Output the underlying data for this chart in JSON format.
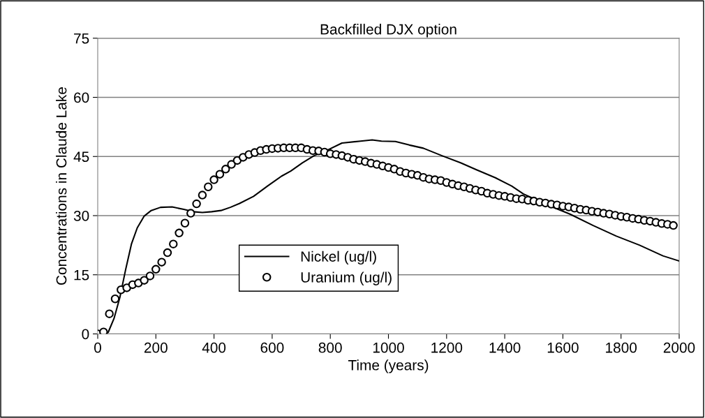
{
  "chart_data": {
    "type": "line",
    "title": "Backfilled DJX option",
    "xlabel": "Time (years)",
    "ylabel": "Concentrations in Claude Lake",
    "xlim": [
      0,
      2000
    ],
    "xticks": [
      0,
      200,
      400,
      600,
      800,
      1000,
      1200,
      1400,
      1600,
      1800,
      2000
    ],
    "ylim": [
      0,
      75
    ],
    "yticks": [
      0,
      15,
      30,
      45,
      60,
      75
    ],
    "grid": "y",
    "legend": "bottom",
    "series": [
      {
        "name": "Nickel (ug/l)",
        "color": "#000000",
        "marker": "none",
        "line_style": "solid",
        "x": [
          0,
          20,
          36,
          56,
          76,
          96,
          116,
          136,
          160,
          184,
          216,
          256,
          296,
          328,
          360,
          392,
          424,
          456,
          488,
          536,
          584,
          632,
          664,
          704,
          744,
          784,
          840,
          904,
          944,
          976,
          1024,
          1072,
          1120,
          1184,
          1248,
          1304,
          1368,
          1424,
          1464,
          1544,
          1624,
          1704,
          1784,
          1864,
          1944,
          2000
        ],
        "values": [
          0,
          0,
          0.4,
          3.9,
          9.2,
          16.3,
          22.8,
          26.9,
          29.9,
          31.3,
          32.1,
          32.2,
          31.6,
          31.0,
          30.8,
          31.0,
          31.3,
          32.1,
          33.1,
          34.9,
          37.5,
          40.0,
          41.3,
          43.4,
          45.2,
          46.4,
          48.4,
          48.9,
          49.2,
          48.9,
          48.8,
          47.9,
          47.1,
          45.2,
          43.4,
          41.6,
          39.6,
          37.5,
          35.5,
          32.8,
          30.4,
          27.5,
          24.8,
          22.5,
          19.8,
          18.5
        ]
      },
      {
        "name": "Uranium (ug/l)",
        "type": "scatter",
        "color": "#000000",
        "marker": "circle",
        "x": [
          0,
          20,
          40,
          60,
          80,
          100,
          120,
          140,
          160,
          180,
          200,
          220,
          240,
          260,
          280,
          300,
          320,
          340,
          360,
          380,
          400,
          420,
          440,
          460,
          480,
          500,
          520,
          540,
          560,
          580,
          600,
          620,
          640,
          660,
          680,
          700,
          720,
          740,
          760,
          780,
          800,
          820,
          840,
          860,
          880,
          900,
          920,
          940,
          960,
          980,
          1000,
          1020,
          1040,
          1060,
          1080,
          1100,
          1120,
          1140,
          1160,
          1180,
          1200,
          1220,
          1240,
          1260,
          1280,
          1300,
          1320,
          1340,
          1360,
          1380,
          1400,
          1420,
          1440,
          1460,
          1480,
          1500,
          1520,
          1540,
          1560,
          1580,
          1600,
          1620,
          1640,
          1660,
          1680,
          1700,
          1720,
          1740,
          1760,
          1780,
          1800,
          1820,
          1840,
          1860,
          1880,
          1900,
          1920,
          1940,
          1960,
          1980
        ],
        "values": [
          0,
          0.5,
          5.1,
          8.9,
          11.2,
          11.7,
          12.5,
          12.9,
          13.6,
          14.7,
          16.4,
          18.2,
          20.6,
          22.8,
          25.6,
          28.1,
          30.6,
          33.0,
          35.2,
          37.3,
          39.1,
          40.5,
          41.8,
          43.0,
          44.0,
          44.8,
          45.5,
          46.0,
          46.5,
          46.8,
          47.0,
          47.1,
          47.2,
          47.2,
          47.2,
          47.2,
          46.8,
          46.5,
          46.4,
          46.1,
          45.7,
          45.5,
          45.2,
          44.8,
          44.3,
          44.0,
          43.7,
          43.3,
          43.0,
          42.6,
          42.2,
          41.8,
          41.2,
          40.8,
          40.5,
          40.2,
          39.7,
          39.3,
          39.1,
          38.9,
          38.4,
          38.0,
          37.6,
          37.3,
          36.9,
          36.5,
          36.2,
          35.7,
          35.4,
          35.1,
          34.9,
          34.6,
          34.3,
          34.2,
          33.9,
          33.7,
          33.4,
          33.2,
          32.9,
          32.7,
          32.4,
          32.2,
          31.9,
          31.6,
          31.4,
          31.1,
          30.9,
          30.6,
          30.4,
          30.1,
          29.8,
          29.6,
          29.3,
          29.1,
          28.8,
          28.6,
          28.3,
          28.0,
          27.8,
          27.5
        ]
      }
    ]
  }
}
